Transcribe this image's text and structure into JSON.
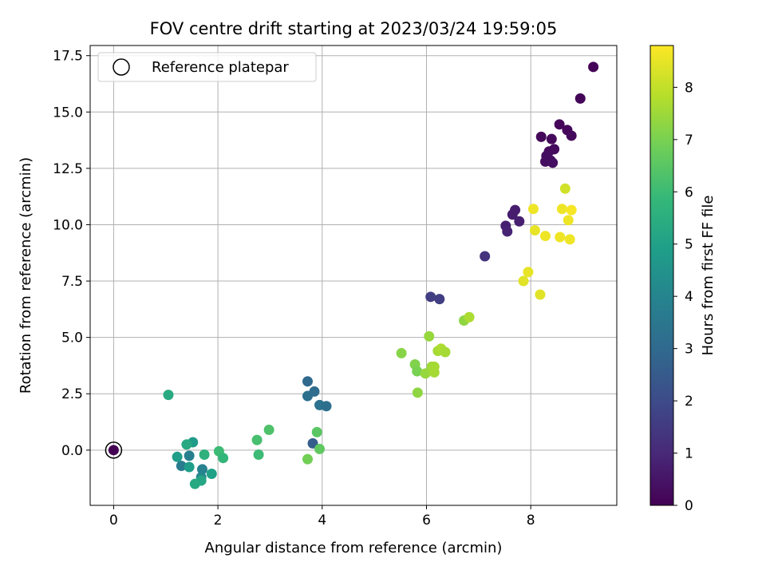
{
  "chart_data": {
    "type": "scatter",
    "title": "FOV centre drift starting at 2023/03/24 19:59:05",
    "xlabel": "Angular distance from reference (arcmin)",
    "ylabel": "Rotation from reference (arcmin)",
    "xlim": [
      -0.45,
      9.65
    ],
    "ylim": [
      -2.45,
      17.95
    ],
    "x_ticks": [
      0,
      2,
      4,
      6,
      8
    ],
    "x_tick_labels": [
      "0",
      "2",
      "4",
      "6",
      "8"
    ],
    "y_ticks": [
      0.0,
      2.5,
      5.0,
      7.5,
      10.0,
      12.5,
      15.0,
      17.5
    ],
    "y_tick_labels": [
      "0.0",
      "2.5",
      "5.0",
      "7.5",
      "10.0",
      "12.5",
      "15.0",
      "17.5"
    ],
    "grid": true,
    "legend": {
      "placement": "top-left",
      "entries": [
        {
          "label": "Reference platepar",
          "marker": "open-circle"
        }
      ]
    },
    "colorbar": {
      "label": "Hours from first FF file",
      "colormap": "viridis",
      "range": [
        0,
        8.8
      ],
      "ticks": [
        0,
        1,
        2,
        3,
        4,
        5,
        6,
        7,
        8
      ],
      "tick_labels": [
        "0",
        "1",
        "2",
        "3",
        "4",
        "5",
        "6",
        "7",
        "8"
      ],
      "stops": [
        "#440154",
        "#482878",
        "#3e4a89",
        "#31688e",
        "#26828e",
        "#1f9e89",
        "#35b779",
        "#6ece58",
        "#b5de2b",
        "#fde725"
      ]
    },
    "reference_point": {
      "x": 0,
      "y": 0,
      "label": "Reference platepar"
    },
    "points": [
      {
        "x": 0.0,
        "y": 0.0,
        "c": 0.0
      },
      {
        "x": 9.2,
        "y": 17.0,
        "c": 0.05
      },
      {
        "x": 8.95,
        "y": 15.6,
        "c": 0.1
      },
      {
        "x": 8.55,
        "y": 14.45,
        "c": 0.15
      },
      {
        "x": 8.7,
        "y": 14.2,
        "c": 0.15
      },
      {
        "x": 8.78,
        "y": 13.95,
        "c": 0.2
      },
      {
        "x": 8.2,
        "y": 13.9,
        "c": 0.2
      },
      {
        "x": 8.4,
        "y": 13.8,
        "c": 0.2
      },
      {
        "x": 8.45,
        "y": 13.35,
        "c": 0.25
      },
      {
        "x": 8.35,
        "y": 13.25,
        "c": 0.25
      },
      {
        "x": 8.3,
        "y": 13.05,
        "c": 0.3
      },
      {
        "x": 8.38,
        "y": 12.85,
        "c": 0.3
      },
      {
        "x": 8.28,
        "y": 12.8,
        "c": 0.3
      },
      {
        "x": 8.42,
        "y": 12.75,
        "c": 0.35
      },
      {
        "x": 7.7,
        "y": 10.65,
        "c": 0.7
      },
      {
        "x": 7.65,
        "y": 10.45,
        "c": 0.7
      },
      {
        "x": 7.78,
        "y": 10.15,
        "c": 0.75
      },
      {
        "x": 7.52,
        "y": 9.95,
        "c": 0.8
      },
      {
        "x": 7.55,
        "y": 9.7,
        "c": 0.85
      },
      {
        "x": 7.12,
        "y": 8.6,
        "c": 1.3
      },
      {
        "x": 6.08,
        "y": 6.8,
        "c": 1.6
      },
      {
        "x": 6.25,
        "y": 6.7,
        "c": 1.6
      },
      {
        "x": 3.72,
        "y": 3.05,
        "c": 3.0
      },
      {
        "x": 3.85,
        "y": 2.6,
        "c": 3.1
      },
      {
        "x": 3.72,
        "y": 2.4,
        "c": 3.2
      },
      {
        "x": 3.95,
        "y": 2.0,
        "c": 3.3
      },
      {
        "x": 4.08,
        "y": 1.95,
        "c": 3.2
      },
      {
        "x": 3.82,
        "y": 0.3,
        "c": 2.6
      },
      {
        "x": 1.52,
        "y": 0.35,
        "c": 4.8
      },
      {
        "x": 1.4,
        "y": 0.25,
        "c": 5.3
      },
      {
        "x": 1.22,
        "y": -0.3,
        "c": 4.9
      },
      {
        "x": 1.45,
        "y": -0.25,
        "c": 3.8
      },
      {
        "x": 1.3,
        "y": -0.7,
        "c": 3.7
      },
      {
        "x": 1.45,
        "y": -0.75,
        "c": 4.9
      },
      {
        "x": 1.7,
        "y": -0.85,
        "c": 3.9
      },
      {
        "x": 1.68,
        "y": -1.2,
        "c": 4.1
      },
      {
        "x": 1.68,
        "y": -1.35,
        "c": 5.2
      },
      {
        "x": 1.56,
        "y": -1.5,
        "c": 5.3
      },
      {
        "x": 1.88,
        "y": -1.05,
        "c": 5.0
      },
      {
        "x": 1.74,
        "y": -0.2,
        "c": 5.6
      },
      {
        "x": 2.02,
        "y": -0.05,
        "c": 6.0
      },
      {
        "x": 2.1,
        "y": -0.35,
        "c": 5.8
      },
      {
        "x": 1.05,
        "y": 2.45,
        "c": 5.3
      },
      {
        "x": 2.75,
        "y": 0.45,
        "c": 6.2
      },
      {
        "x": 2.78,
        "y": -0.2,
        "c": 6.0
      },
      {
        "x": 2.98,
        "y": 0.9,
        "c": 6.3
      },
      {
        "x": 3.9,
        "y": 0.8,
        "c": 6.5
      },
      {
        "x": 3.95,
        "y": 0.05,
        "c": 6.6
      },
      {
        "x": 3.72,
        "y": -0.4,
        "c": 6.9
      },
      {
        "x": 5.52,
        "y": 4.3,
        "c": 7.2
      },
      {
        "x": 5.78,
        "y": 3.8,
        "c": 7.1
      },
      {
        "x": 5.82,
        "y": 3.5,
        "c": 7.0
      },
      {
        "x": 5.83,
        "y": 2.55,
        "c": 7.3
      },
      {
        "x": 5.98,
        "y": 3.4,
        "c": 7.4
      },
      {
        "x": 6.05,
        "y": 5.05,
        "c": 7.4
      },
      {
        "x": 6.1,
        "y": 3.7,
        "c": 7.5
      },
      {
        "x": 6.15,
        "y": 3.7,
        "c": 7.6
      },
      {
        "x": 6.15,
        "y": 3.45,
        "c": 7.6
      },
      {
        "x": 6.22,
        "y": 4.4,
        "c": 7.6
      },
      {
        "x": 6.28,
        "y": 4.5,
        "c": 7.7
      },
      {
        "x": 6.36,
        "y": 4.35,
        "c": 7.6
      },
      {
        "x": 6.72,
        "y": 5.75,
        "c": 7.3
      },
      {
        "x": 6.82,
        "y": 5.9,
        "c": 7.7
      },
      {
        "x": 7.86,
        "y": 7.5,
        "c": 8.4
      },
      {
        "x": 7.95,
        "y": 7.9,
        "c": 8.5
      },
      {
        "x": 8.18,
        "y": 6.9,
        "c": 8.4
      },
      {
        "x": 8.05,
        "y": 10.7,
        "c": 8.6
      },
      {
        "x": 8.08,
        "y": 9.75,
        "c": 8.5
      },
      {
        "x": 8.28,
        "y": 9.5,
        "c": 8.6
      },
      {
        "x": 8.56,
        "y": 9.45,
        "c": 8.6
      },
      {
        "x": 8.6,
        "y": 10.7,
        "c": 8.6
      },
      {
        "x": 8.66,
        "y": 11.6,
        "c": 8.2
      },
      {
        "x": 8.72,
        "y": 10.2,
        "c": 8.6
      },
      {
        "x": 8.75,
        "y": 9.35,
        "c": 8.6
      },
      {
        "x": 8.78,
        "y": 10.65,
        "c": 8.7
      }
    ]
  }
}
